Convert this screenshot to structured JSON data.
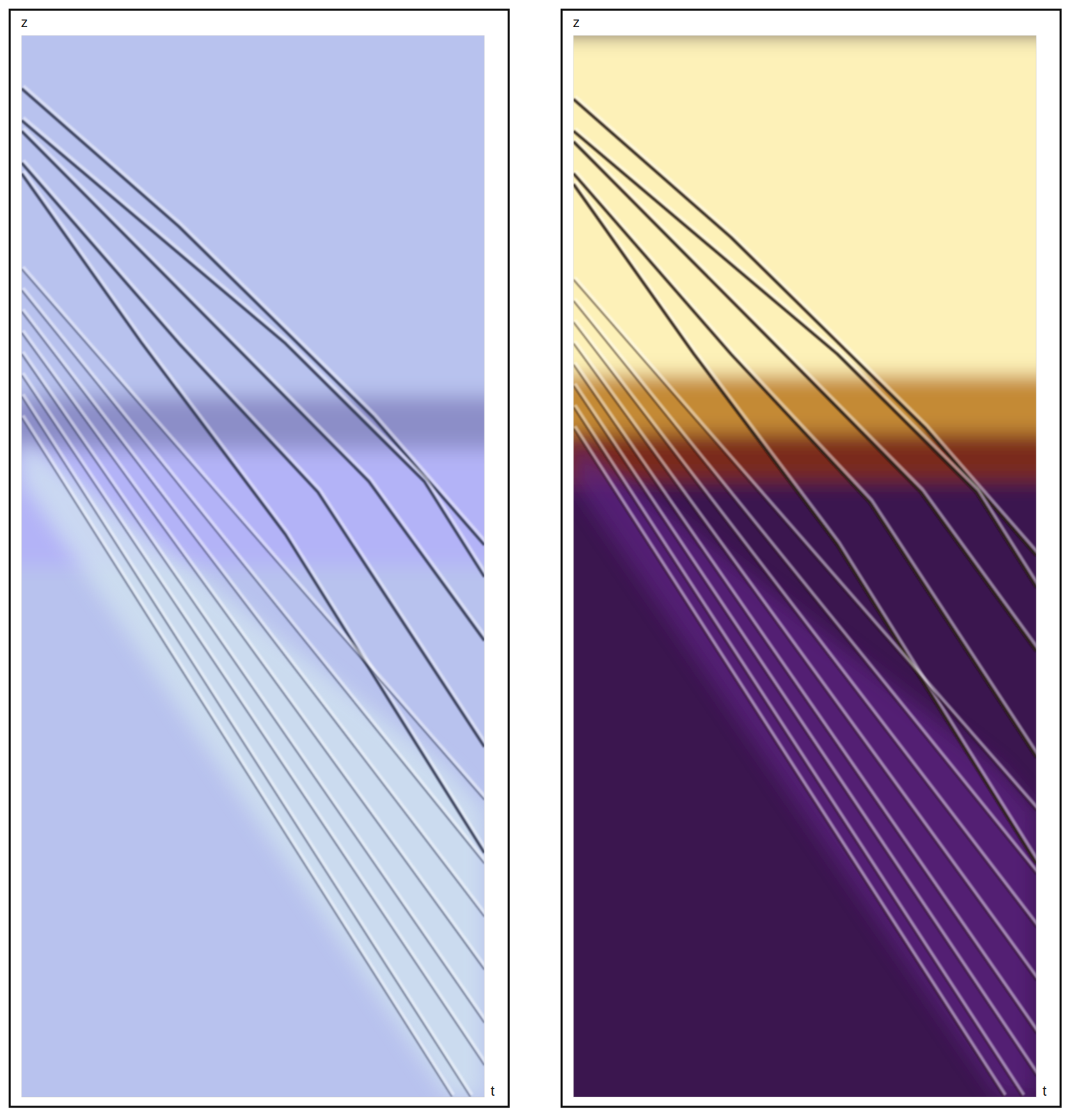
{
  "chart_data": [
    {
      "type": "density",
      "x_label": "t",
      "y_label": "z",
      "xlim": [
        0,
        1
      ],
      "ylim": [
        0,
        1
      ],
      "tick_labels": false,
      "color": "#2f3450",
      "bands": [
        {
          "zlim": [
            0,
            1
          ],
          "color": "#b8c2ee"
        },
        {
          "zlim": [
            0.5,
            0.62
          ],
          "color": "#b3b3f7"
        },
        {
          "zlim": [
            0.61,
            0.66
          ],
          "color": "#8c8ec8"
        }
      ],
      "plume": {
        "x": [
          0,
          0.92,
          1
        ],
        "upper": [
          0.62,
          0.31,
          0.27
        ],
        "lower": [
          0.58,
          0,
          0
        ],
        "color": "#d2e4f0"
      },
      "series": [
        {
          "x": [
            0,
            0.34,
            0.76,
            0.9,
            1
          ],
          "values": [
            0.95,
            0.82,
            0.64,
            0.57,
            0.52
          ]
        },
        {
          "x": [
            0,
            0.57,
            0.87,
            1
          ],
          "values": [
            0.92,
            0.71,
            0.58,
            0.49
          ]
        },
        {
          "x": [
            0,
            0.41,
            0.75,
            1
          ],
          "values": [
            0.91,
            0.73,
            0.58,
            0.43
          ]
        },
        {
          "x": [
            0,
            0.34,
            0.64,
            1
          ],
          "values": [
            0.88,
            0.71,
            0.57,
            0.33
          ]
        },
        {
          "x": [
            0,
            0.26,
            0.57,
            1
          ],
          "values": [
            0.87,
            0.71,
            0.53,
            0.23
          ]
        },
        {
          "x": [
            0,
            1
          ],
          "values": [
            0.78,
            0.28
          ]
        },
        {
          "x": [
            0,
            1
          ],
          "values": [
            0.76,
            0.22
          ]
        },
        {
          "x": [
            0,
            1
          ],
          "values": [
            0.74,
            0.17
          ]
        },
        {
          "x": [
            0,
            1
          ],
          "values": [
            0.72,
            0.12
          ]
        },
        {
          "x": [
            0,
            1
          ],
          "values": [
            0.7,
            0.07
          ]
        },
        {
          "x": [
            0,
            1
          ],
          "values": [
            0.68,
            0.03
          ]
        },
        {
          "x": [
            0,
            0.97
          ],
          "values": [
            0.66,
            0
          ]
        },
        {
          "x": [
            0,
            0.93
          ],
          "values": [
            0.64,
            0
          ]
        }
      ]
    },
    {
      "type": "density",
      "x_label": "t",
      "y_label": "z",
      "xlim": [
        0,
        1
      ],
      "ylim": [
        0,
        1
      ],
      "tick_labels": false,
      "color": "#22120e",
      "bands": [
        {
          "zlim": [
            0,
            1
          ],
          "color": "#3b1550"
        },
        {
          "zlim": [
            0.62,
            1
          ],
          "color": "#fdf1b8"
        },
        {
          "zlim": [
            0.62,
            0.68
          ],
          "color": "#c48a34"
        },
        {
          "zlim": [
            0.58,
            0.625
          ],
          "color": "#7a2a1c"
        }
      ],
      "plume": {
        "x": [
          0,
          0.92,
          1
        ],
        "upper": [
          0.62,
          0.31,
          0.27
        ],
        "lower": [
          0.58,
          0,
          0
        ],
        "color": "#5c2080"
      },
      "series": [
        {
          "x": [
            0,
            0.34,
            0.76,
            0.9,
            1
          ],
          "values": [
            0.94,
            0.81,
            0.63,
            0.56,
            0.51
          ]
        },
        {
          "x": [
            0,
            0.57,
            0.87,
            1
          ],
          "values": [
            0.91,
            0.7,
            0.57,
            0.48
          ]
        },
        {
          "x": [
            0,
            0.41,
            0.75,
            1
          ],
          "values": [
            0.9,
            0.72,
            0.57,
            0.42
          ]
        },
        {
          "x": [
            0,
            0.34,
            0.64,
            1
          ],
          "values": [
            0.87,
            0.7,
            0.56,
            0.32
          ]
        },
        {
          "x": [
            0,
            0.26,
            0.57,
            1
          ],
          "values": [
            0.86,
            0.7,
            0.52,
            0.22
          ]
        },
        {
          "x": [
            0,
            1
          ],
          "values": [
            0.77,
            0.27
          ]
        },
        {
          "x": [
            0,
            1
          ],
          "values": [
            0.75,
            0.21
          ]
        },
        {
          "x": [
            0,
            1
          ],
          "values": [
            0.73,
            0.16
          ]
        },
        {
          "x": [
            0,
            1
          ],
          "values": [
            0.71,
            0.11
          ]
        },
        {
          "x": [
            0,
            1
          ],
          "values": [
            0.69,
            0.06
          ]
        },
        {
          "x": [
            0,
            1
          ],
          "values": [
            0.67,
            0.02
          ]
        },
        {
          "x": [
            0,
            0.97
          ],
          "values": [
            0.65,
            0
          ]
        },
        {
          "x": [
            0,
            0.93
          ],
          "values": [
            0.63,
            0
          ]
        }
      ]
    }
  ]
}
